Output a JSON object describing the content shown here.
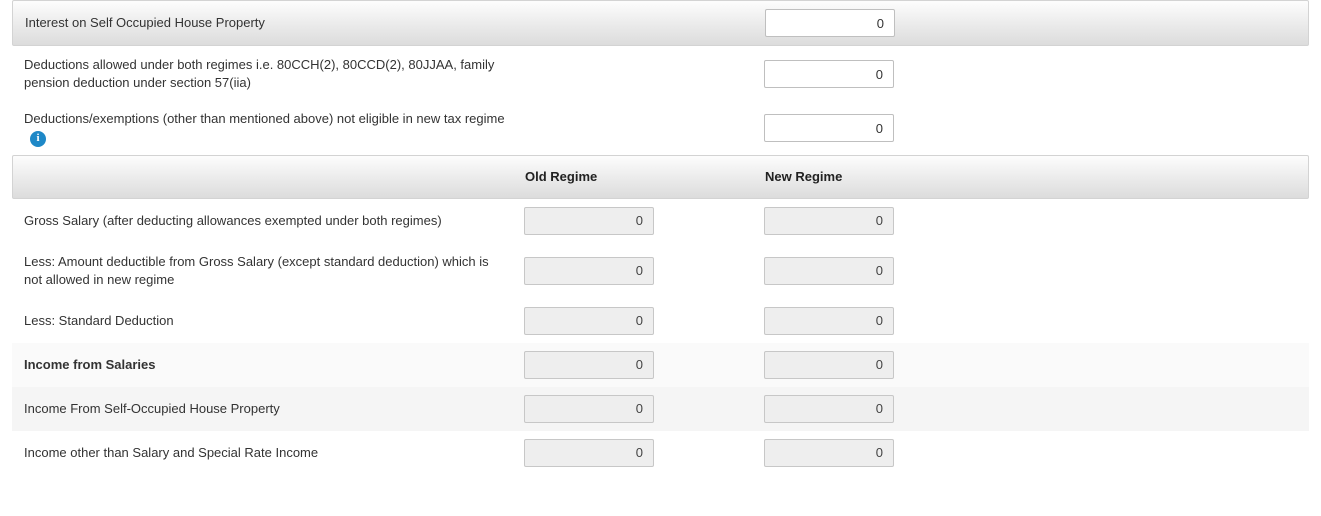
{
  "inputs": {
    "interest_sop": {
      "label": "Interest on Self Occupied House Property",
      "value": "0"
    },
    "deductions_both": {
      "label": "Deductions allowed under both regimes i.e. 80CCH(2), 80CCD(2), 80JJAA, family pension deduction under section 57(iia)",
      "value": "0"
    },
    "deductions_not_new": {
      "label": "Deductions/exemptions (other than mentioned above) not eligible in new tax regime",
      "value": "0"
    }
  },
  "columns": {
    "old": "Old Regime",
    "new": "New Regime"
  },
  "comp": {
    "gross_salary": {
      "label": "Gross Salary (after deducting allowances exempted under both regimes)",
      "old": "0",
      "new": "0"
    },
    "less_deductible": {
      "label": "Less: Amount deductible from Gross Salary (except standard deduction) which is not allowed in new regime",
      "old": "0",
      "new": "0"
    },
    "less_std": {
      "label": "Less: Standard Deduction",
      "old": "0",
      "new": "0"
    },
    "income_salaries": {
      "label": "Income from Salaries",
      "old": "0",
      "new": "0"
    },
    "income_sop": {
      "label": "Income From Self-Occupied House Property",
      "old": "0",
      "new": "0"
    },
    "income_other": {
      "label": "Income other than Salary and Special Rate Income",
      "old": "0",
      "new": "0"
    }
  },
  "info_glyph": "i"
}
